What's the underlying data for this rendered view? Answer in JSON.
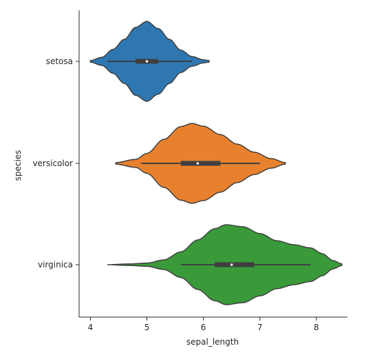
{
  "chart_data": {
    "type": "violin",
    "orientation": "horizontal",
    "xlabel": "sepal_length",
    "ylabel": "species",
    "xlim": [
      3.8,
      8.55
    ],
    "xticks": [
      4,
      5,
      6,
      7,
      8
    ],
    "grid": false,
    "legend": "none",
    "categories": [
      "setosa",
      "versicolor",
      "virginica"
    ],
    "series": [
      {
        "category": "setosa",
        "color": "#2f77b0",
        "kde_range": [
          4.0,
          6.1
        ],
        "stats": {
          "min": 4.3,
          "q1": 4.8,
          "median": 5.0,
          "q3": 5.2,
          "max": 5.8
        },
        "profile": [
          [
            4.0,
            0.02
          ],
          [
            4.2,
            0.1
          ],
          [
            4.4,
            0.3
          ],
          [
            4.6,
            0.55
          ],
          [
            4.8,
            0.85
          ],
          [
            5.0,
            1.0
          ],
          [
            5.2,
            0.82
          ],
          [
            5.4,
            0.55
          ],
          [
            5.6,
            0.28
          ],
          [
            5.8,
            0.12
          ],
          [
            6.0,
            0.04
          ],
          [
            6.1,
            0.02
          ]
        ]
      },
      {
        "category": "versicolor",
        "color": "#e8812d",
        "kde_range": [
          4.45,
          7.45
        ],
        "stats": {
          "min": 4.9,
          "q1": 5.6,
          "median": 5.9,
          "q3": 6.3,
          "max": 7.0
        },
        "profile": [
          [
            4.45,
            0.02
          ],
          [
            4.8,
            0.1
          ],
          [
            5.0,
            0.25
          ],
          [
            5.3,
            0.6
          ],
          [
            5.6,
            0.92
          ],
          [
            5.8,
            1.0
          ],
          [
            6.0,
            0.93
          ],
          [
            6.3,
            0.72
          ],
          [
            6.6,
            0.48
          ],
          [
            6.9,
            0.28
          ],
          [
            7.2,
            0.12
          ],
          [
            7.45,
            0.02
          ]
        ]
      },
      {
        "category": "virginica",
        "color": "#3a9a3a",
        "kde_range": [
          4.3,
          8.45
        ],
        "stats": {
          "min": 5.6,
          "q1": 6.2,
          "median": 6.5,
          "q3": 6.9,
          "max": 7.9
        },
        "profile": [
          [
            4.3,
            0.0
          ],
          [
            4.7,
            0.02
          ],
          [
            5.0,
            0.04
          ],
          [
            5.3,
            0.12
          ],
          [
            5.6,
            0.32
          ],
          [
            5.9,
            0.62
          ],
          [
            6.2,
            0.9
          ],
          [
            6.4,
            1.0
          ],
          [
            6.7,
            0.95
          ],
          [
            7.0,
            0.78
          ],
          [
            7.3,
            0.6
          ],
          [
            7.6,
            0.5
          ],
          [
            7.9,
            0.42
          ],
          [
            8.1,
            0.28
          ],
          [
            8.3,
            0.1
          ],
          [
            8.45,
            0.02
          ]
        ]
      }
    ]
  }
}
